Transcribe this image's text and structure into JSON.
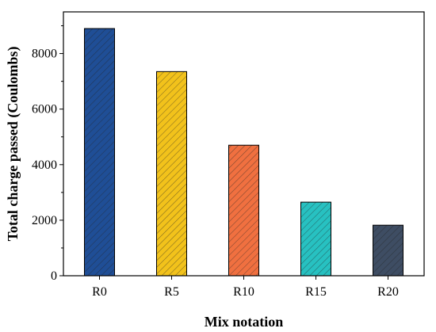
{
  "chart_data": {
    "type": "bar",
    "title": "",
    "xlabel": "Mix notation",
    "ylabel": "Total charge passed (Coulombs)",
    "categories": [
      "R0",
      "R5",
      "R10",
      "R15",
      "R20"
    ],
    "values": [
      8900,
      7350,
      4700,
      2650,
      1820
    ],
    "ylim": [
      0,
      9500
    ],
    "yticks": [
      "0",
      "2000",
      "4000",
      "6000",
      "8000"
    ],
    "colors": [
      "#1f4e96",
      "#f2c21b",
      "#f07040",
      "#27c1c1",
      "#3e4d63"
    ],
    "hatch": "diagonal",
    "grid": false,
    "legend": "none"
  }
}
